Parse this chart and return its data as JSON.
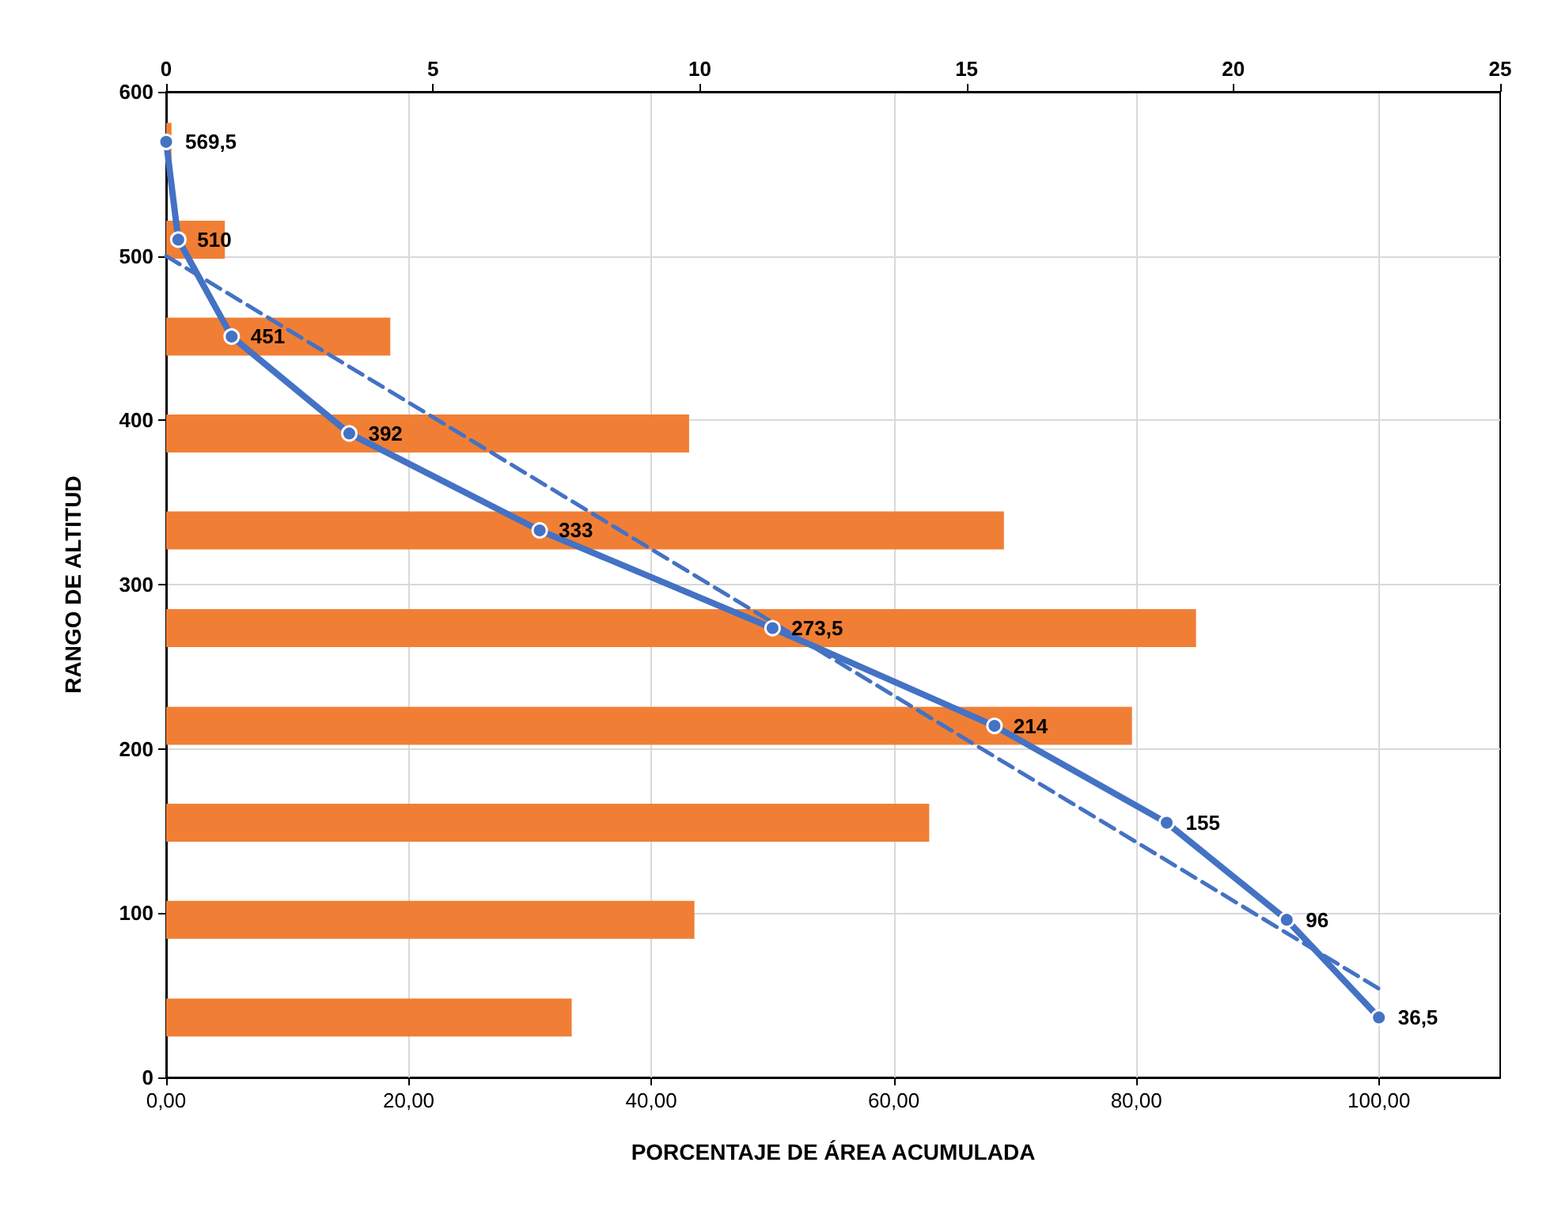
{
  "chart_data": {
    "type": "bar",
    "orientation": "horizontal",
    "xlabel": "PORCENTAJE DE ÁREA ACUMULADA",
    "ylabel": "RANGO DE ALTITUD",
    "xlim": [
      0,
      110
    ],
    "xticks": [
      {
        "value": 0,
        "label": "0,00"
      },
      {
        "value": 20,
        "label": "20,00"
      },
      {
        "value": 40,
        "label": "40,00"
      },
      {
        "value": 60,
        "label": "60,00"
      },
      {
        "value": 80,
        "label": "80,00"
      },
      {
        "value": 100,
        "label": "100,00"
      }
    ],
    "x2lim": [
      0,
      25
    ],
    "x2ticks": [
      0,
      5,
      10,
      15,
      20,
      25
    ],
    "ylim": [
      0,
      600
    ],
    "yticks": [
      0,
      100,
      200,
      300,
      400,
      500,
      600
    ],
    "grid": true,
    "annotations": [
      {
        "text": "569,5",
        "x": 0,
        "y": 569.5
      },
      {
        "text": "510",
        "x": 1.0,
        "y": 510
      },
      {
        "text": "451",
        "x": 5.4,
        "y": 451
      },
      {
        "text": "392",
        "x": 15.1,
        "y": 392
      },
      {
        "text": "333",
        "x": 30.8,
        "y": 333
      },
      {
        "text": "273,5",
        "x": 50.0,
        "y": 273.5
      },
      {
        "text": "214",
        "x": 68.3,
        "y": 214
      },
      {
        "text": "155",
        "x": 82.5,
        "y": 155
      },
      {
        "text": "96",
        "x": 92.4,
        "y": 96
      },
      {
        "text": "36,5",
        "x": 100,
        "y": 36.5
      }
    ],
    "series": [
      {
        "axis": "x2",
        "color": "#f07f35",
        "x": [
          569.5,
          510,
          451,
          392,
          333,
          273.5,
          214,
          155,
          96,
          36.5
        ],
        "values": [
          0.1,
          1.1,
          4.2,
          9.8,
          15.7,
          19.3,
          18.1,
          14.3,
          9.9,
          7.6
        ]
      },
      {
        "type": "line",
        "color": "#4472c4",
        "marker": "circle",
        "line_style": "solid",
        "x": [
          569.5,
          510,
          451,
          392,
          333,
          273.5,
          214,
          155,
          96,
          36.5
        ],
        "values": [
          0,
          1.0,
          5.4,
          15.1,
          30.8,
          50.0,
          68.3,
          82.5,
          92.4,
          100
        ]
      },
      {
        "type": "line",
        "color": "#4472c4",
        "marker": "none",
        "line_style": "dashed",
        "x": [
          500,
          54
        ],
        "values": [
          0,
          100
        ]
      }
    ]
  }
}
